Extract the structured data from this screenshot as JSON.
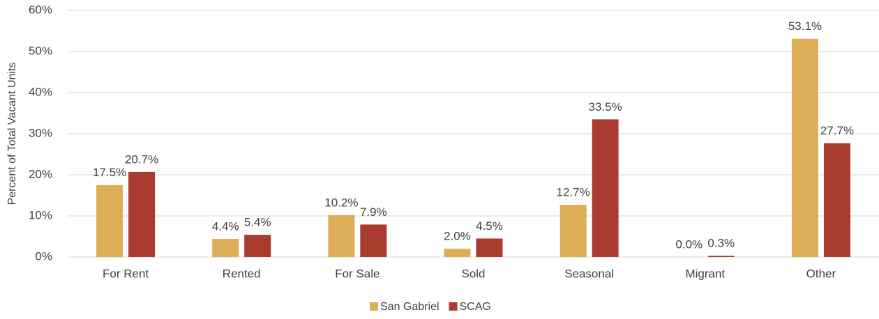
{
  "chart_data": {
    "type": "bar",
    "y_label": "Percent of Total Vacant Units",
    "categories": [
      "For Rent",
      "Rented",
      "For Sale",
      "Sold",
      "Seasonal",
      "Migrant",
      "Other"
    ],
    "series": [
      {
        "name": "San Gabriel",
        "color": "#dcae57",
        "values": [
          17.5,
          4.4,
          10.2,
          2.0,
          12.7,
          0.0,
          53.1
        ],
        "value_labels": [
          "17.5%",
          "4.4%",
          "10.2%",
          "2.0%",
          "12.7%",
          "0.0%",
          "53.1%"
        ]
      },
      {
        "name": "SCAG",
        "color": "#a93b2f",
        "values": [
          20.7,
          5.4,
          7.9,
          4.5,
          33.5,
          0.3,
          27.7
        ],
        "value_labels": [
          "20.7%",
          "5.4%",
          "7.9%",
          "4.5%",
          "33.5%",
          "0.3%",
          "27.7%"
        ]
      }
    ],
    "ylim": [
      0,
      60
    ],
    "yticks": [
      {
        "value": 0,
        "label": "0%"
      },
      {
        "value": 10,
        "label": "10%"
      },
      {
        "value": 20,
        "label": "20%"
      },
      {
        "value": 30,
        "label": "30%"
      },
      {
        "value": 40,
        "label": "40%"
      },
      {
        "value": 50,
        "label": "50%"
      },
      {
        "value": 60,
        "label": "60%"
      }
    ],
    "grid": true,
    "legend": "bottom"
  }
}
